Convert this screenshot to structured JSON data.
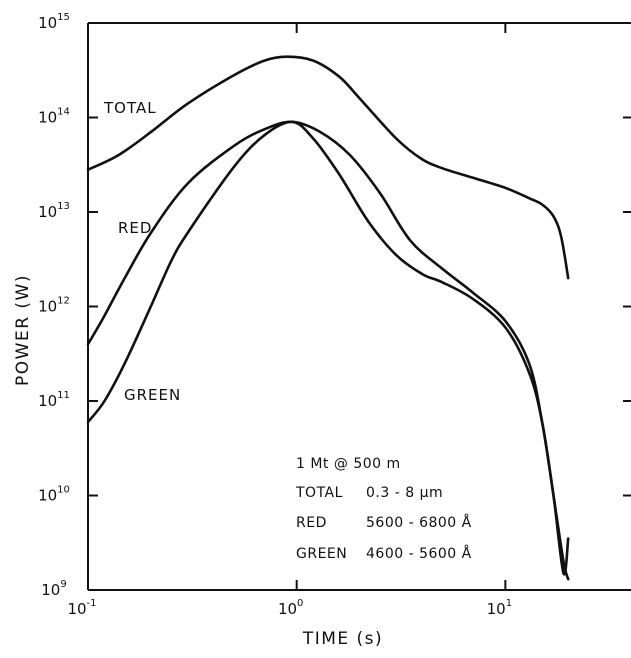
{
  "chart_data": {
    "type": "line",
    "title": "",
    "xlabel": "TIME (s)",
    "ylabel": "POWER (W)",
    "x_scale": "log",
    "y_scale": "log",
    "xlim": [
      0.1,
      40
    ],
    "ylim": [
      1000000000.0,
      1000000000000000.0
    ],
    "grid": false,
    "x_ticks": [
      {
        "base": "10",
        "exp": "-1",
        "value": 0.1
      },
      {
        "base": "10",
        "exp": "0",
        "value": 1
      },
      {
        "base": "10",
        "exp": "1",
        "value": 10
      }
    ],
    "y_ticks": [
      {
        "base": "10",
        "exp": "9",
        "value": 1000000000.0
      },
      {
        "base": "10",
        "exp": "10",
        "value": 10000000000.0
      },
      {
        "base": "10",
        "exp": "11",
        "value": 100000000000.0
      },
      {
        "base": "10",
        "exp": "12",
        "value": 1000000000000.0
      },
      {
        "base": "10",
        "exp": "13",
        "value": 10000000000000.0
      },
      {
        "base": "10",
        "exp": "14",
        "value": 100000000000000.0
      },
      {
        "base": "10",
        "exp": "15",
        "value": 1000000000000000.0
      }
    ],
    "series": [
      {
        "name": "TOTAL",
        "x": [
          0.1,
          0.14,
          0.2,
          0.3,
          0.5,
          0.7,
          0.9,
          1.2,
          1.6,
          2.0,
          3.0,
          4.0,
          5.0,
          7.0,
          10,
          13,
          15,
          17,
          18.5,
          20
        ],
        "y": [
          28000000000000.0,
          40000000000000.0,
          70000000000000.0,
          140000000000000.0,
          280000000000000.0,
          400000000000000.0,
          440000000000000.0,
          400000000000000.0,
          270000000000000.0,
          160000000000000.0,
          60000000000000.0,
          36000000000000.0,
          29000000000000.0,
          23000000000000.0,
          18000000000000.0,
          14000000000000.0,
          12000000000000.0,
          9000000000000.0,
          5500000000000.0,
          2000000000000.0
        ]
      },
      {
        "name": "RED",
        "x": [
          0.1,
          0.12,
          0.15,
          0.2,
          0.3,
          0.5,
          0.7,
          0.95,
          1.3,
          1.8,
          2.5,
          3.5,
          5.0,
          7.0,
          10,
          13,
          15,
          17,
          19,
          20
        ],
        "y": [
          400000000000.0,
          800000000000.0,
          2000000000000.0,
          6000000000000.0,
          20000000000000.0,
          50000000000000.0,
          75000000000000.0,
          90000000000000.0,
          70000000000000.0,
          40000000000000.0,
          16000000000000.0,
          5000000000000.0,
          2500000000000.0,
          1400000000000.0,
          700000000000.0,
          250000000000.0,
          60000000000.0,
          10000000000.0,
          1500000000.0,
          3500000000.0
        ]
      },
      {
        "name": "GREEN",
        "x": [
          0.1,
          0.12,
          0.15,
          0.2,
          0.25,
          0.3,
          0.5,
          0.7,
          0.95,
          1.2,
          1.6,
          2.2,
          3.0,
          4.0,
          5.0,
          7.0,
          10,
          13,
          15,
          17,
          19,
          20
        ],
        "y": [
          60000000000.0,
          100000000000.0,
          250000000000.0,
          1000000000000.0,
          3000000000000.0,
          6000000000000.0,
          30000000000000.0,
          65000000000000.0,
          90000000000000.0,
          60000000000000.0,
          25000000000000.0,
          8000000000000.0,
          3500000000000.0,
          2200000000000.0,
          1800000000000.0,
          1200000000000.0,
          600000000000.0,
          200000000000.0,
          60000000000.0,
          10000000000.0,
          2000000000.0,
          1300000000.0
        ]
      }
    ],
    "series_labels": [
      "TOTAL",
      "RED",
      "GREEN"
    ],
    "annotation": [
      {
        "key": "1 Mt @ 500 m",
        "value": ""
      },
      {
        "key": "TOTAL",
        "value": "0.3 - 8 μm"
      },
      {
        "key": "RED",
        "value": "5600 - 6800 Å"
      },
      {
        "key": "GREEN",
        "value": "4600 - 5600 Å"
      }
    ]
  }
}
